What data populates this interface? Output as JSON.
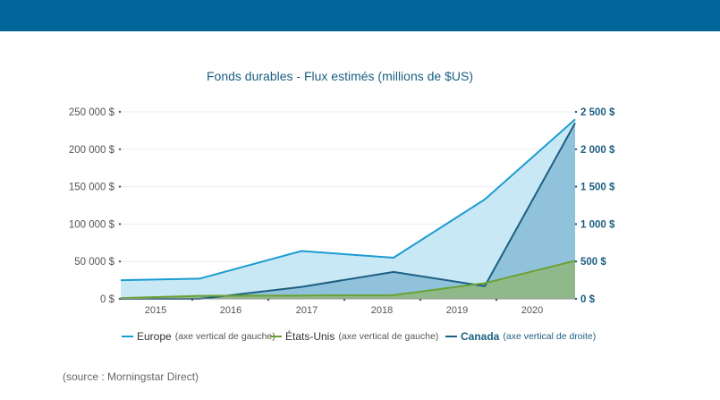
{
  "chart_data": {
    "type": "area",
    "title": "Fonds durables - Flux estimés (millions de $US)",
    "x": [
      2015,
      2016,
      2017,
      2018,
      2019,
      2020
    ],
    "x_ticks": [
      "2015",
      "2016",
      "2017",
      "2018",
      "2019",
      "2020"
    ],
    "left_axis": {
      "ylim": [
        0,
        250000
      ],
      "ticks": [
        "0 $",
        "50 000 $",
        "100 000 $",
        "150 000 $",
        "200 000 $",
        "250 000 $"
      ]
    },
    "right_axis": {
      "ylim": [
        0,
        2500
      ],
      "ticks": [
        "0 $",
        "500 $",
        "1 000 $",
        "1 500 $",
        "2 000 $",
        "2 500 $"
      ]
    },
    "series": [
      {
        "name": "Europe",
        "note": "(axe vertical de gauche)",
        "axis": "left",
        "color": "#1b9bd1",
        "fill": "#c9e8f5",
        "values": [
          25000,
          27000,
          64000,
          55000,
          133000,
          240000
        ]
      },
      {
        "name": "Canada",
        "note": "(axe vertical de droite)",
        "axis": "right",
        "color": "#1d5f82",
        "fill": "#86bcd6",
        "values": [
          -300,
          -50,
          160,
          360,
          170,
          2350
        ]
      },
      {
        "name": "États-Unis",
        "note": "(axe vertical de gauche)",
        "axis": "left",
        "color": "#6aa136",
        "fill": "#8fb98a",
        "values": [
          1000,
          4000,
          4500,
          5000,
          21000,
          51000
        ]
      }
    ],
    "legend_position": "bottom",
    "grid": true
  },
  "legend": [
    {
      "name": "Europe",
      "note": "(axe vertical de gauche)",
      "color": "#1b9bd1",
      "bold": false
    },
    {
      "name": "États-Unis",
      "note": "(axe vertical de gauche)",
      "color": "#6aa136",
      "bold": false
    },
    {
      "name": "Canada",
      "note": "(axe vertical de droite)",
      "color": "#1d5f82",
      "bold": true
    }
  ],
  "source": "(source : Morningstar Direct)"
}
